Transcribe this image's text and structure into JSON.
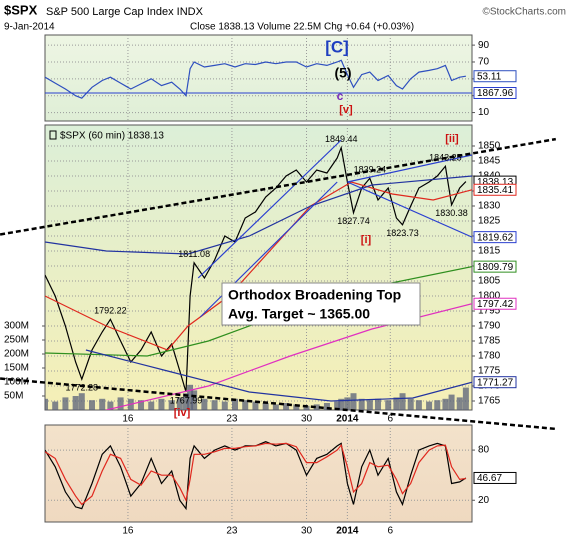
{
  "chart_data": [
    {
      "type": "line",
      "name": "RSI",
      "x": [
        0,
        0.5,
        1,
        1.5,
        1.8,
        2.3,
        2.8,
        3.2,
        3.7,
        4.2,
        4.7,
        5.2,
        5.7,
        6.2,
        6.6,
        6.9,
        7.1,
        7.3,
        7.8,
        8.3,
        8.8,
        9.3,
        9.8,
        10.3,
        10.8,
        11.3,
        11.8,
        12.3,
        12.8,
        13.3,
        13.8,
        14.3,
        14.5,
        14.8,
        15.1,
        15.5,
        15.9,
        16.3,
        16.8,
        17.2,
        17.5,
        17.9,
        18.3,
        18.8,
        19.2,
        19.6,
        19.9,
        20.3,
        20.6
      ],
      "xlim": [
        0,
        20.9
      ],
      "ylim": [
        0,
        102
      ],
      "yticks": [
        90,
        70,
        50,
        30,
        10
      ],
      "grid": true,
      "note": 1867.96,
      "series": [
        {
          "color": "#2e4fbf",
          "style": "line",
          "last_label": true,
          "values": [
            52,
            45,
            38,
            30,
            27,
            40,
            48,
            52,
            45,
            38,
            44,
            50,
            42,
            46,
            38,
            30,
            62,
            70,
            64,
            66,
            68,
            64,
            68,
            67,
            70,
            68,
            70,
            70,
            64,
            68,
            66,
            70,
            72,
            55,
            40,
            55,
            58,
            48,
            54,
            42,
            38,
            50,
            58,
            60,
            62,
            66,
            48,
            52,
            53.11
          ]
        }
      ]
    },
    {
      "type": "line",
      "symbol": "$SPX",
      "title": "S&P 500 Large Cap Index INDX",
      "subtitle": "9-Jan-2014",
      "info": "Close 1838.13  Volume 22.5M  Chg +0.64 (+0.03%)",
      "credit": "©StockCharts.com",
      "legend_label": "$SPX (60 min) 1838.13",
      "box_text": [
        "Orthodox Broadening Top",
        "Avg. Target ~ 1365.00"
      ],
      "wave_labels": [
        "[C]",
        "(5)",
        "c",
        "[v]",
        "[ii]",
        "[i]",
        "[iv]"
      ],
      "x": [
        0,
        0.5,
        1,
        1.5,
        1.8,
        2.3,
        2.8,
        3.2,
        3.7,
        4.2,
        4.7,
        5.2,
        5.7,
        6.2,
        6.6,
        6.9,
        7.1,
        7.3,
        7.8,
        8.3,
        8.8,
        9.3,
        9.8,
        10.3,
        10.8,
        11.3,
        11.8,
        12.3,
        12.8,
        13.3,
        13.8,
        14.3,
        14.5,
        14.8,
        15.1,
        15.5,
        15.9,
        16.3,
        16.8,
        17.2,
        17.5,
        17.9,
        18.3,
        18.8,
        19.2,
        19.6,
        19.9,
        20.3,
        20.6
      ],
      "xlim": [
        0,
        20.9
      ],
      "xticks": [
        {
          "value": 4.06,
          "label": "16"
        },
        {
          "value": 9.15,
          "label": "23"
        },
        {
          "value": 12.8,
          "label": "30"
        },
        {
          "value": 14.8,
          "label": "2014"
        },
        {
          "value": 16.9,
          "label": "6"
        }
      ],
      "ylim": [
        1762,
        1857
      ],
      "yticks": [
        1765,
        1770,
        1775,
        1780,
        1785,
        1790,
        1795,
        1800,
        1805,
        1810,
        1815,
        1820,
        1825,
        1830,
        1835,
        1840,
        1845,
        1850
      ],
      "y2lim": [
        0,
        1018
      ],
      "y2ticks": [
        {
          "value": 300,
          "label": "300M"
        },
        {
          "value": 250,
          "label": "250M"
        },
        {
          "value": 200,
          "label": "200M"
        },
        {
          "value": 150,
          "label": "150M"
        },
        {
          "value": 100,
          "label": "100M"
        },
        {
          "value": 50,
          "label": "50M"
        }
      ],
      "grid": true,
      "peaks": [
        {
          "x": 14.5,
          "value": 1849.44
        },
        {
          "x": 15.9,
          "value": 1839.24
        },
        {
          "x": 19.6,
          "value": 1843.25
        },
        {
          "x": 15.1,
          "value": 1827.74
        },
        {
          "x": 17.5,
          "value": 1823.73
        },
        {
          "x": 19.9,
          "value": 1830.38
        },
        {
          "x": 7.3,
          "value": 1811.08
        },
        {
          "x": 3.2,
          "value": 1792.22
        },
        {
          "x": 1.8,
          "value": 1772.28
        },
        {
          "x": 6.9,
          "value": 1767.99
        }
      ],
      "series": [
        {
          "color": "#58607a",
          "style": "bar",
          "axis": "y2",
          "values": [
            40,
            30,
            45,
            50,
            60,
            35,
            40,
            30,
            45,
            40,
            35,
            30,
            40,
            35,
            45,
            60,
            90,
            70,
            40,
            35,
            30,
            40,
            35,
            30,
            25,
            20,
            25,
            20,
            15,
            20,
            25,
            30,
            40,
            45,
            60,
            40,
            35,
            40,
            35,
            45,
            60,
            40,
            35,
            30,
            35,
            40,
            55,
            45,
            80
          ]
        },
        {
          "color": "#000000",
          "style": "line",
          "last_label": true,
          "values": [
            1807,
            1800,
            1790,
            1778,
            1772.28,
            1782,
            1788,
            1792.22,
            1785,
            1778,
            1782,
            1788,
            1780,
            1784,
            1775,
            1767.99,
            1800,
            1811.08,
            1806,
            1812,
            1820,
            1818,
            1826,
            1828,
            1833,
            1836,
            1840,
            1842,
            1838,
            1842,
            1841,
            1846,
            1849.44,
            1838,
            1827.74,
            1836,
            1839.24,
            1832,
            1836,
            1826,
            1823.73,
            1830,
            1836,
            1838,
            1840,
            1843.25,
            1830.38,
            1836,
            1838.13
          ]
        },
        {
          "color": "#e0281e",
          "style": "line",
          "last_label": true,
          "x": [
            0,
            3,
            6,
            7,
            9,
            11,
            13,
            15,
            17,
            19,
            20.9
          ],
          "values": [
            1800,
            1790,
            1782,
            1790,
            1800,
            1815,
            1830,
            1838,
            1834,
            1832,
            1835.41
          ]
        },
        {
          "color": "#2f8f1f",
          "style": "line",
          "last_label": true,
          "x": [
            0,
            5,
            8,
            12,
            16,
            20.9
          ],
          "values": [
            1781,
            1780,
            1785,
            1795,
            1803,
            1809.79
          ]
        },
        {
          "color": "#e030c0",
          "style": "line",
          "last_label": true,
          "x": [
            3,
            8,
            12,
            16,
            20.9
          ],
          "values": [
            1762,
            1770,
            1780,
            1789,
            1797.42
          ]
        },
        {
          "color": "#2233a0",
          "style": "line",
          "last_label": true,
          "x": [
            2,
            6,
            10,
            14,
            18,
            20.9
          ],
          "values": [
            1782,
            1775,
            1768,
            1765,
            1766,
            1771.27
          ]
        },
        {
          "color": "#2233a0",
          "style": "line",
          "x": [
            0,
            3,
            7,
            10,
            13,
            16,
            20.9
          ],
          "values": [
            1818,
            1815,
            1814,
            1820,
            1830,
            1837,
            1840
          ]
        },
        {
          "color": "#2a3fd0",
          "style": "line",
          "x": [
            14.8,
            20.9
          ],
          "values": [
            1838,
            1847
          ]
        },
        {
          "color": "#2a3fd0",
          "style": "line",
          "last_label": true,
          "x": [
            14.8,
            20.9
          ],
          "values": [
            1838,
            1819.62
          ]
        },
        {
          "color": "#2a3fd0",
          "style": "line",
          "x": [
            7.5,
            14.5
          ],
          "values": [
            1806,
            1852
          ]
        },
        {
          "color": "#2a3fd0",
          "style": "line",
          "x": [
            7.6,
            14.3
          ],
          "values": [
            1793,
            1838
          ]
        },
        {
          "color": "#000000",
          "style": "dashed",
          "x": [
            -2.2,
            25
          ],
          "values": [
            1820.5,
            1852.3
          ]
        },
        {
          "color": "#000000",
          "style": "dashed",
          "x": [
            -2.2,
            25
          ],
          "values": [
            1772.5,
            1755.7
          ]
        }
      ]
    },
    {
      "type": "line",
      "name": "Stochastic",
      "x": [
        0,
        0.5,
        1,
        1.5,
        1.8,
        2.3,
        2.8,
        3.2,
        3.7,
        4.2,
        4.7,
        5.2,
        5.7,
        6.2,
        6.6,
        6.9,
        7.1,
        7.3,
        7.8,
        8.3,
        8.8,
        9.3,
        9.8,
        10.3,
        10.8,
        11.3,
        11.8,
        12.3,
        12.8,
        13.3,
        13.8,
        14.3,
        14.5,
        14.8,
        15.1,
        15.5,
        15.9,
        16.3,
        16.8,
        17.2,
        17.5,
        17.9,
        18.3,
        18.8,
        19.2,
        19.6,
        19.9,
        20.3,
        20.6
      ],
      "xlim": [
        0,
        20.9
      ],
      "xticks": [
        {
          "value": 4.06,
          "label": "16"
        },
        {
          "value": 9.15,
          "label": "23"
        },
        {
          "value": 12.8,
          "label": "30"
        },
        {
          "value": 14.8,
          "label": "2014"
        },
        {
          "value": 16.9,
          "label": "6"
        }
      ],
      "ylim": [
        -6,
        110
      ],
      "yticks": [
        80,
        20
      ],
      "grid": true,
      "series": [
        {
          "color": "#000000",
          "style": "line",
          "last_label": true,
          "values": [
            80,
            60,
            30,
            12,
            10,
            40,
            75,
            85,
            60,
            25,
            40,
            70,
            40,
            55,
            20,
            10,
            70,
            85,
            70,
            80,
            85,
            80,
            85,
            85,
            90,
            85,
            88,
            80,
            50,
            70,
            75,
            85,
            88,
            40,
            15,
            60,
            80,
            50,
            70,
            30,
            15,
            50,
            80,
            85,
            88,
            85,
            40,
            42,
            46.67
          ]
        },
        {
          "color": "#e0281e",
          "style": "line",
          "values": [
            78,
            70,
            45,
            25,
            15,
            25,
            55,
            75,
            70,
            45,
            38,
            55,
            50,
            50,
            35,
            20,
            45,
            75,
            75,
            78,
            82,
            82,
            84,
            85,
            88,
            87,
            88,
            84,
            65,
            65,
            72,
            80,
            86,
            60,
            30,
            40,
            65,
            60,
            62,
            45,
            28,
            40,
            65,
            80,
            85,
            86,
            60,
            45,
            46
          ]
        }
      ]
    }
  ]
}
